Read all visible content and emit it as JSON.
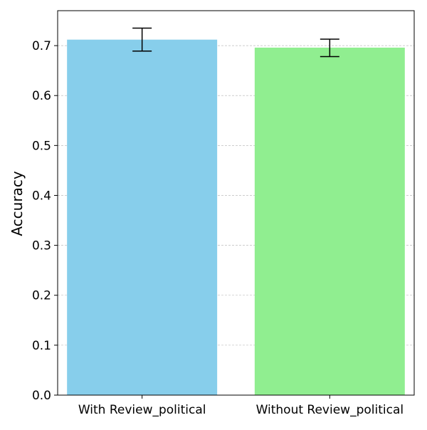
{
  "chart_data": {
    "type": "bar",
    "title": "",
    "xlabel": "",
    "ylabel": "Accuracy",
    "categories": [
      "With Review_political",
      "Without Review_political"
    ],
    "values": [
      0.712,
      0.696
    ],
    "error_low": [
      0.689,
      0.678
    ],
    "error_high": [
      0.735,
      0.713
    ],
    "bar_colors": [
      "#87ceeb",
      "#90ee90"
    ],
    "ylim": [
      0,
      0.77
    ],
    "yticks": [
      "0.0",
      "0.1",
      "0.2",
      "0.3",
      "0.4",
      "0.5",
      "0.6",
      "0.7"
    ],
    "grid": "horizontal dashed",
    "legend": "none"
  }
}
